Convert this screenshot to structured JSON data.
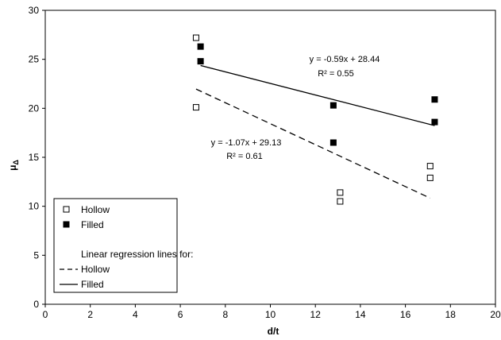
{
  "chart_data": {
    "type": "scatter",
    "xlabel": "d/t",
    "ylabel": "μ",
    "ylabel_sub": "Δ",
    "xlim": [
      0,
      20
    ],
    "ylim": [
      0,
      30
    ],
    "xticks": [
      0,
      2,
      4,
      6,
      8,
      10,
      12,
      14,
      16,
      18,
      20
    ],
    "yticks": [
      0,
      5,
      10,
      15,
      20,
      25,
      30
    ],
    "grid": false,
    "legend_position": "bottom-left",
    "series": [
      {
        "name": "Hollow",
        "marker": "open-square",
        "color": "#000000",
        "points": [
          {
            "x": 6.7,
            "y": 27.2
          },
          {
            "x": 6.7,
            "y": 20.1
          },
          {
            "x": 13.1,
            "y": 11.4
          },
          {
            "x": 13.1,
            "y": 10.5
          },
          {
            "x": 17.1,
            "y": 14.1
          },
          {
            "x": 17.1,
            "y": 12.9
          }
        ]
      },
      {
        "name": "Filled",
        "marker": "filled-square",
        "color": "#000000",
        "points": [
          {
            "x": 6.9,
            "y": 26.3
          },
          {
            "x": 6.9,
            "y": 24.8
          },
          {
            "x": 12.8,
            "y": 20.3
          },
          {
            "x": 12.8,
            "y": 16.5
          },
          {
            "x": 17.3,
            "y": 20.9
          },
          {
            "x": 17.3,
            "y": 18.6
          }
        ]
      }
    ],
    "regression_lines": [
      {
        "name": "Hollow",
        "style": "dashed",
        "slope": -1.07,
        "intercept": 29.13,
        "x_range": [
          6.7,
          17.1
        ],
        "equation": "y = -1.07x + 29.13",
        "r2": "R² = 0.61"
      },
      {
        "name": "Filled",
        "style": "solid",
        "slope": -0.59,
        "intercept": 28.44,
        "x_range": [
          6.9,
          17.3
        ],
        "equation": "y = -0.59x + 28.44",
        "r2": "R² = 0.55"
      }
    ],
    "legend": {
      "entries": [
        "Hollow",
        "Filled"
      ],
      "subheading": "Linear regression lines for:",
      "line_entries": [
        "Hollow",
        "Filled"
      ]
    }
  }
}
